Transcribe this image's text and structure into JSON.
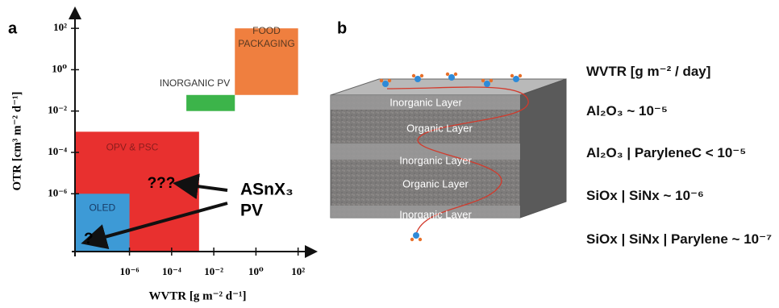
{
  "chart_data": {
    "type": "region",
    "panel_label": "a",
    "x_label": "WVTR [g m⁻² d⁻¹]",
    "y_label": "OTR [cm³ m⁻² d⁻¹]",
    "log_x": true,
    "log_y": true,
    "grid": false,
    "xlim": [
      2.6e-09,
      600
    ],
    "ylim": [
      1.6e-09,
      800
    ],
    "xticks": [
      {
        "value": 1e-06,
        "label": "10⁻⁶"
      },
      {
        "value": 0.0001,
        "label": "10⁻⁴"
      },
      {
        "value": 0.01,
        "label": "10⁻²"
      },
      {
        "value": 1,
        "label": "10⁰"
      },
      {
        "value": 100,
        "label": "10²"
      }
    ],
    "yticks": [
      {
        "value": 100,
        "label": "10²"
      },
      {
        "value": 1,
        "label": "10⁰"
      },
      {
        "value": 0.01,
        "label": "10⁻²"
      },
      {
        "value": 0.0001,
        "label": "10⁻⁴"
      },
      {
        "value": 1e-06,
        "label": "10⁻⁶"
      }
    ],
    "regions": [
      {
        "name": "OPV & PSC",
        "color": "#e8302f",
        "x": [
          2.6e-09,
          0.002
        ],
        "y": [
          1.6e-09,
          0.001
        ]
      },
      {
        "name": "OLED",
        "color": "#3d9ad6",
        "x": [
          2.6e-09,
          1e-06
        ],
        "y": [
          1.6e-09,
          1e-06
        ]
      },
      {
        "name": "INORGANIC PV",
        "color": "#3cb44a",
        "x": [
          0.0005,
          0.1
        ],
        "y": [
          0.01,
          0.06
        ]
      },
      {
        "name": "FOOD PACKAGING",
        "color": "#ef7f3f",
        "x": [
          0.1,
          100
        ],
        "y": [
          0.06,
          100
        ]
      }
    ],
    "annotations": [
      "???",
      "?",
      "ASnX₃",
      "PV"
    ]
  },
  "diagram": {
    "panel_label": "b",
    "layers": [
      "Inorganic Layer",
      "Organic Layer",
      "Inorganic Layer",
      "Organic Layer",
      "Inorganic Layer"
    ]
  },
  "wvtr_list": {
    "title": "WVTR [g m⁻² / day]",
    "items": [
      "Al₂O₃ ~ 10⁻⁵",
      "Al₂O₃ | ParyleneC < 10⁻⁵",
      "SiOx | SiNx ~ 10⁻⁶",
      "SiOx | SiNx | Parylene ~ 10⁻⁷"
    ]
  }
}
